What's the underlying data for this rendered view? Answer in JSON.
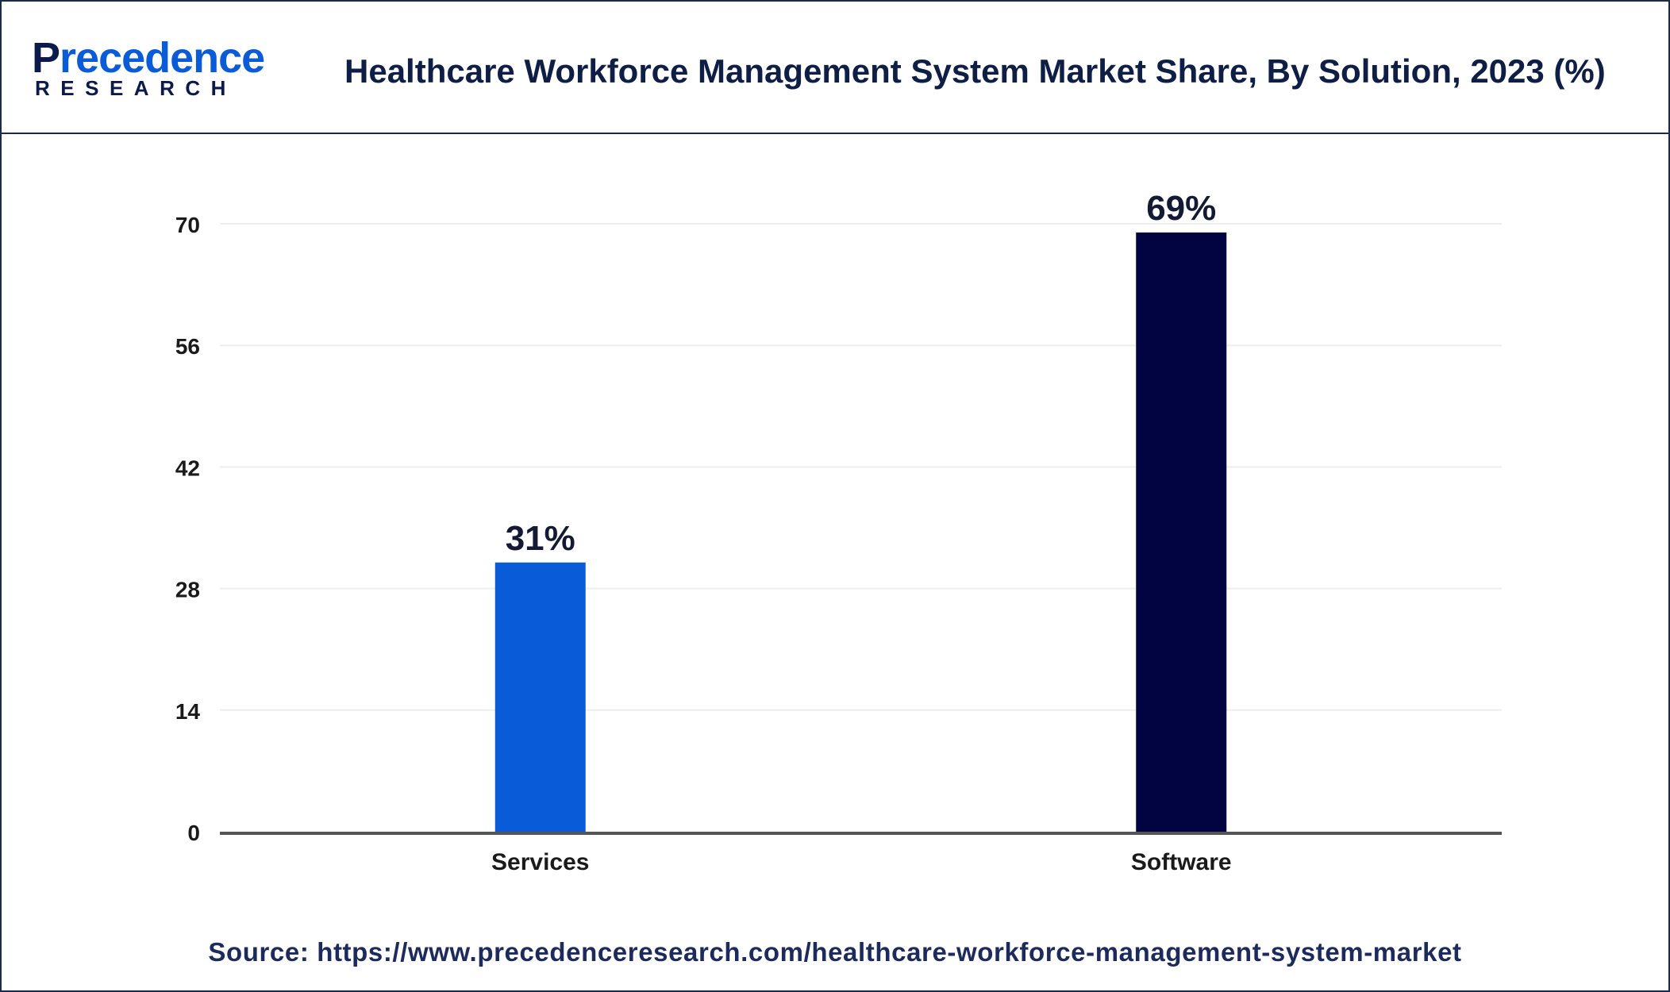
{
  "brand": {
    "logo_initial": "P",
    "logo_rest": "recedence",
    "logo_sub": "RESEARCH",
    "primary_color": "#0b1a4a",
    "accent_color": "#0a5bd7"
  },
  "header": {
    "title": "Healthcare Workforce Management System Market Share, By Solution, 2023 (%)"
  },
  "chart_data": {
    "type": "bar",
    "categories": [
      "Services",
      "Software"
    ],
    "values": [
      31,
      69
    ],
    "data_labels": [
      "31%",
      "69%"
    ],
    "colors": [
      "#0a5bd7",
      "#020442"
    ],
    "ylim": [
      0,
      70
    ],
    "yticks": [
      "0",
      "14",
      "28",
      "42",
      "56",
      "70"
    ],
    "grid": true,
    "legend": "none"
  },
  "footer": {
    "source": "Source: https://www.precedenceresearch.com/healthcare-workforce-management-system-market"
  }
}
